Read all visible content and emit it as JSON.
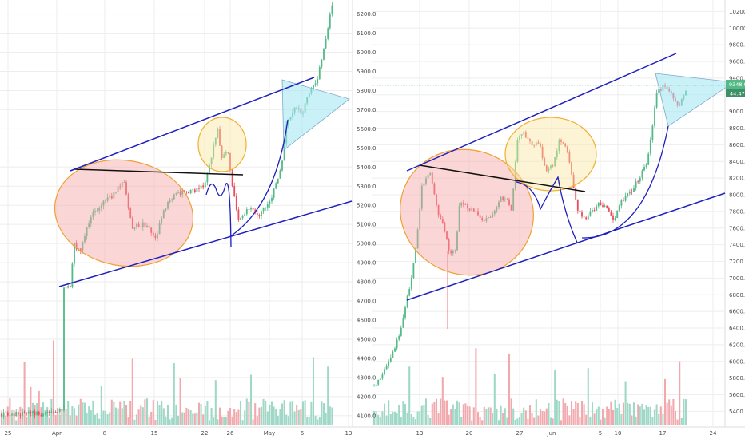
{
  "chart_data": [
    {
      "type": "candlestick",
      "panel": "left",
      "y_axis_labels": [
        "6200.0",
        "6100.0",
        "6000.0",
        "5900.0",
        "5800.0",
        "5700.0",
        "5600.0",
        "5500.0",
        "5400.0",
        "5300.0",
        "5200.0",
        "5100.0",
        "5000.0",
        "4900.0",
        "4800.0",
        "4700.0",
        "4600.0",
        "4500.0",
        "4400.0",
        "4300.0",
        "4200.0",
        "4100.0"
      ],
      "ylim": [
        4070,
        6240
      ],
      "x_axis_labels": [
        "25",
        "Apr",
        "8",
        "15",
        "22",
        "26",
        "May",
        "6",
        "13"
      ],
      "colors": {
        "up": "#53b987",
        "down": "#eb4d5c",
        "volume_up": "#9fd8c6",
        "volume_down": "#f2a9ae",
        "channel": "#1f1fbf",
        "neckline": "#111111",
        "ellipse_red": "#f6a4a4",
        "ellipse_yellow": "#f9e79f",
        "triangle": "#9fe6f0"
      },
      "annotations": [
        "ascending-channel",
        "neckline",
        "red-ellipse",
        "yellow-ellipse",
        "curve",
        "symmetric-triangle"
      ]
    },
    {
      "type": "candlestick",
      "panel": "right",
      "y_axis_labels": [
        "10200.0",
        "10000.0",
        "9800.0",
        "9600.0",
        "9400.0",
        "9200.0",
        "9000.0",
        "8800.0",
        "8600.0",
        "8400.0",
        "8200.0",
        "8000.0",
        "7800.0",
        "7600.0",
        "7400.0",
        "7200.0",
        "7000.0",
        "6800.0",
        "6600.0",
        "6400.0",
        "6200.0",
        "6000.0",
        "5800.0",
        "5600.0",
        "5400.0"
      ],
      "ylim": [
        5260,
        10300
      ],
      "x_axis_labels": [
        "13",
        "20",
        "27",
        "Jun",
        "5",
        "10",
        "17",
        "24"
      ],
      "price_badge": "9348.0",
      "time_badge": "44:47",
      "colors": {
        "badge": "#53b987"
      },
      "annotations": [
        "ascending-channel",
        "neckline",
        "red-ellipse",
        "yellow-ellipse",
        "curve",
        "symmetric-triangle"
      ]
    }
  ]
}
